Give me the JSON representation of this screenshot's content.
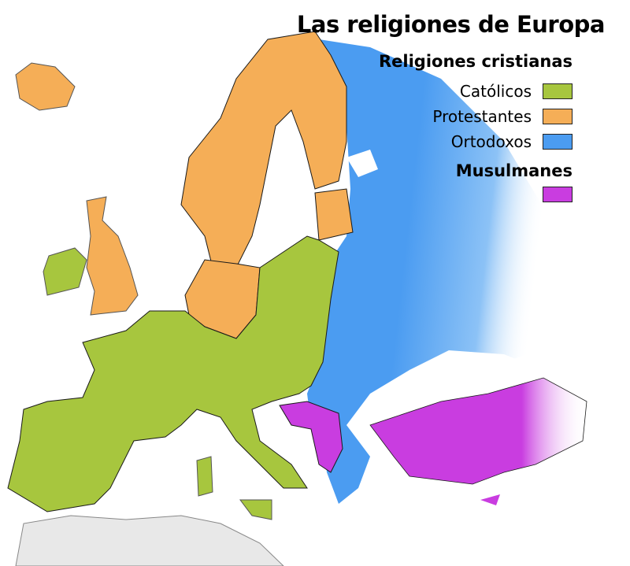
{
  "title": "Las religiones de Europa",
  "legend": {
    "christian_heading": "Religiones cristianas",
    "items": [
      {
        "label": "Católicos",
        "color": "#a7c63e"
      },
      {
        "label": "Protestantes",
        "color": "#f5ae57"
      },
      {
        "label": "Ortodoxos",
        "color": "#4b9cf1"
      }
    ],
    "muslim_heading": "Musulmanes",
    "muslim_color": "#c93de0"
  },
  "colors": {
    "catholic": "#a7c63e",
    "protestant": "#f5ae57",
    "orthodox": "#4b9cf1",
    "muslim": "#c93de0",
    "other_land": "#e8e8e8",
    "border": "#1a1a1a"
  }
}
